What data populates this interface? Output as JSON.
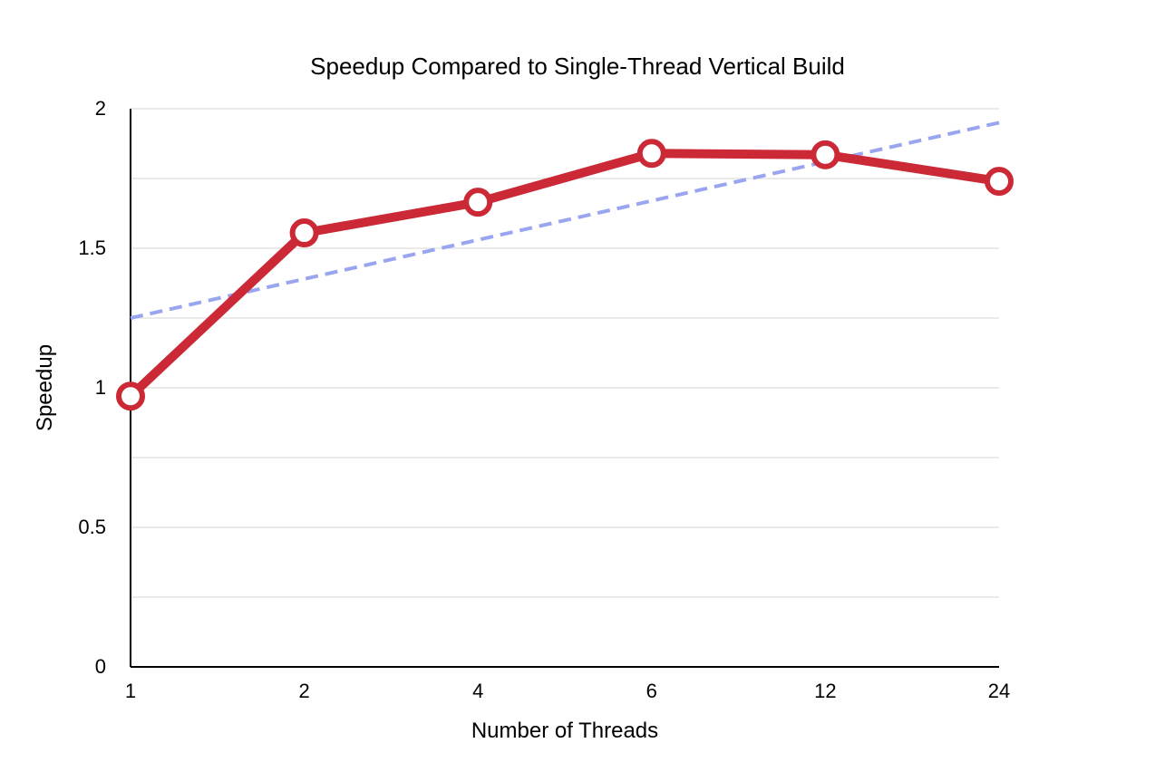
{
  "chart_data": {
    "type": "line",
    "title": "Speedup Compared to Single-Thread Vertical Build",
    "xlabel": "Number of Threads",
    "ylabel": "Speedup",
    "categories": [
      "1",
      "2",
      "4",
      "6",
      "12",
      "24"
    ],
    "series": [
      {
        "values": [
          0.97,
          1.555,
          1.665,
          1.84,
          1.835,
          1.74
        ],
        "color": "#cc2936"
      }
    ],
    "trendline": {
      "style": "dashed",
      "color": "#9aa5f0",
      "start": 1.25,
      "end": 1.95
    },
    "ylim": [
      0,
      2
    ],
    "yticks": [
      "0",
      "0.5",
      "1",
      "1.5",
      "2"
    ],
    "grid": true
  }
}
